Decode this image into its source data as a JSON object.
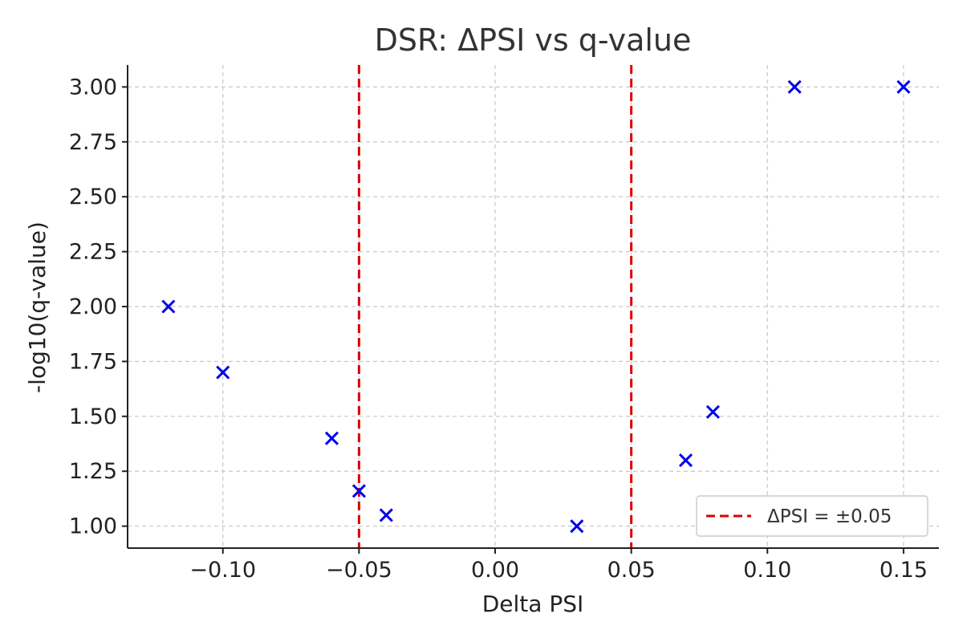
{
  "chart_data": {
    "type": "scatter",
    "title": "DSR: ΔPSI vs q-value",
    "xlabel": "Delta PSI",
    "ylabel": "-log10(q-value)",
    "xlim": [
      -0.135,
      0.163
    ],
    "ylim": [
      0.9,
      3.1
    ],
    "x_ticks": [
      -0.1,
      -0.05,
      0.0,
      0.05,
      0.1,
      0.15
    ],
    "x_tick_labels": [
      "−0.10",
      "−0.05",
      "0.00",
      "0.05",
      "0.10",
      "0.15"
    ],
    "y_ticks": [
      1.0,
      1.25,
      1.5,
      1.75,
      2.0,
      2.25,
      2.5,
      2.75,
      3.0
    ],
    "y_tick_labels": [
      "1.00",
      "1.25",
      "1.50",
      "1.75",
      "2.00",
      "2.25",
      "2.50",
      "2.75",
      "3.00"
    ],
    "grid": true,
    "marker": "x",
    "point_color": "#0000ee",
    "points": [
      {
        "x": -0.12,
        "y": 2.0
      },
      {
        "x": -0.1,
        "y": 1.7
      },
      {
        "x": -0.06,
        "y": 1.4
      },
      {
        "x": -0.05,
        "y": 1.16
      },
      {
        "x": -0.04,
        "y": 1.05
      },
      {
        "x": 0.03,
        "y": 1.0
      },
      {
        "x": 0.07,
        "y": 1.3
      },
      {
        "x": 0.08,
        "y": 1.52
      },
      {
        "x": 0.11,
        "y": 3.0
      },
      {
        "x": 0.15,
        "y": 3.0
      }
    ],
    "reference_lines": [
      {
        "x": -0.05,
        "color": "#dd0000",
        "style": "dashed"
      },
      {
        "x": 0.05,
        "color": "#dd0000",
        "style": "dashed"
      }
    ],
    "legend": {
      "position": "lower-right",
      "entries": [
        {
          "label": "ΔPSI = ±0.05",
          "color": "#dd0000",
          "style": "dashed"
        }
      ]
    }
  }
}
